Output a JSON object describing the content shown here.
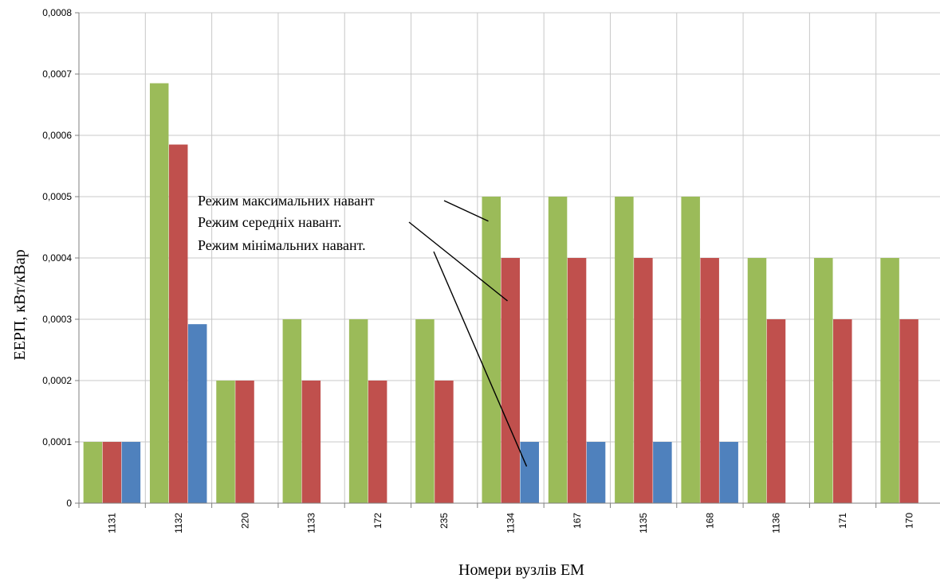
{
  "chart_data": {
    "type": "bar",
    "xlabel": "Номери вузлів ЕМ",
    "ylabel": "ЕЕРП, кВт/кВар",
    "ylim": [
      0,
      0.0008
    ],
    "yticks": [
      "0",
      "0,0001",
      "0,0002",
      "0,0003",
      "0,0004",
      "0,0005",
      "0,0006",
      "0,0007",
      "0,0008"
    ],
    "grid": true,
    "categories": [
      "1131",
      "1132",
      "220",
      "1133",
      "172",
      "235",
      "1134",
      "167",
      "1135",
      "168",
      "1136",
      "171",
      "170"
    ],
    "series": [
      {
        "color": "#9bbb59",
        "values": [
          0.0001,
          0.000685,
          0.0002,
          0.0003,
          0.0003,
          0.0003,
          0.0005,
          0.0005,
          0.0005,
          0.0005,
          0.0004,
          0.0004,
          0.0004
        ]
      },
      {
        "color": "#c0504d",
        "values": [
          0.0001,
          0.000585,
          0.0002,
          0.0002,
          0.0002,
          0.0002,
          0.0004,
          0.0004,
          0.0004,
          0.0004,
          0.0003,
          0.0003,
          0.0003
        ]
      },
      {
        "color": "#4f81bd",
        "values": [
          0.0001,
          0.000292,
          0,
          0,
          0,
          0,
          0.0001,
          0.0001,
          0.0001,
          0.0001,
          0,
          0,
          0
        ]
      }
    ],
    "annotations": [
      {
        "text": "Режим максимальних навант",
        "series_index": 0,
        "target_category": "1134",
        "target_value": 0.00046
      },
      {
        "text": "Режим середніх навант.",
        "series_index": 1,
        "target_category": "1134",
        "target_value": 0.00033
      },
      {
        "text": "Режим мінімальних навант.",
        "series_index": 2,
        "target_category": "1134",
        "target_value": 6e-05
      }
    ]
  }
}
